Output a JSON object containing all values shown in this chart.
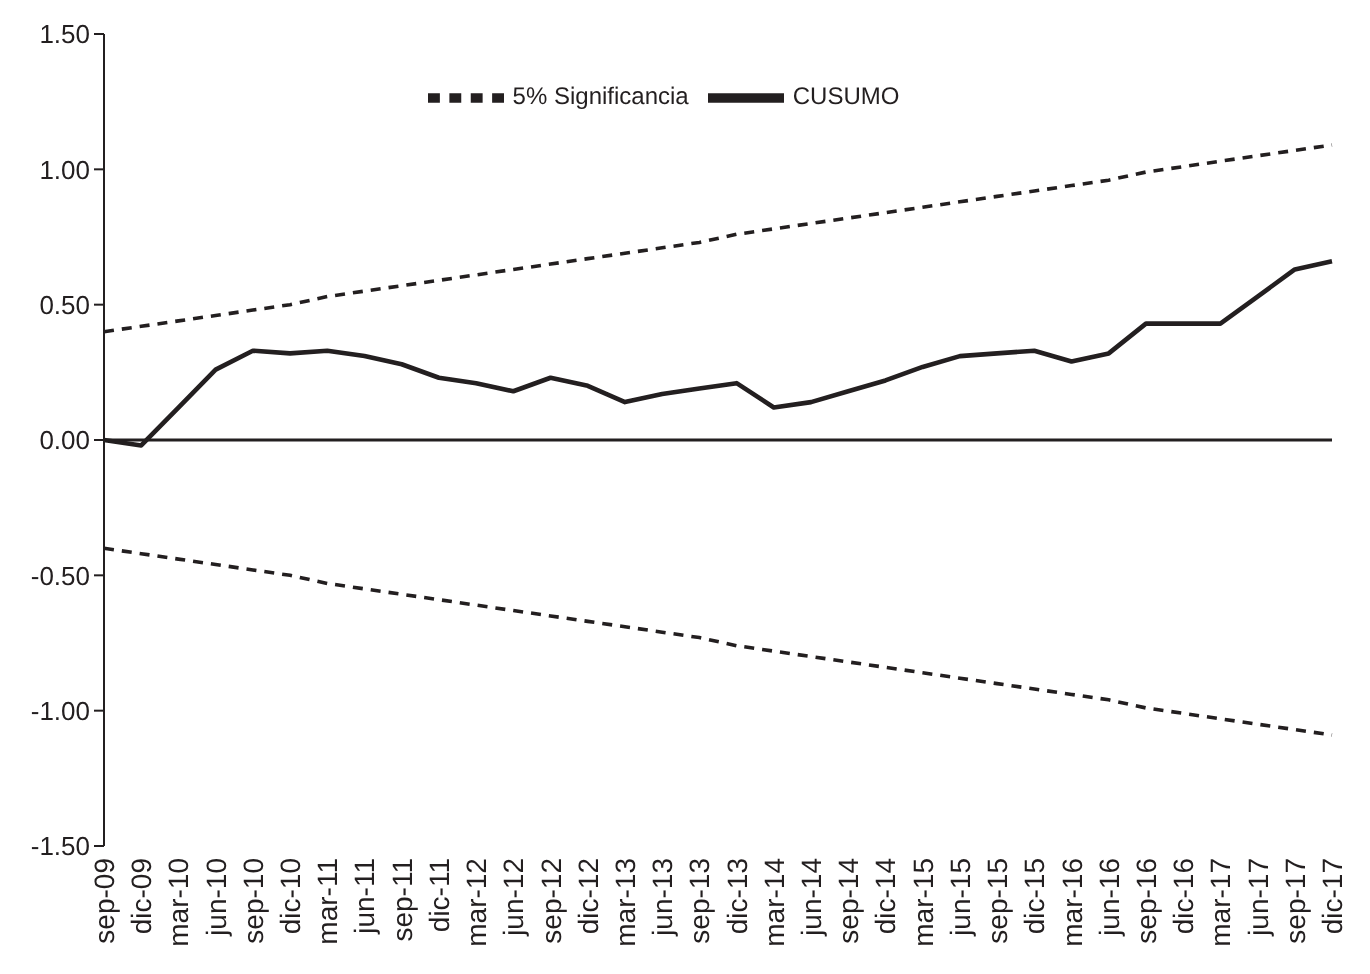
{
  "chart_data": {
    "type": "line",
    "categories": [
      "sep-09",
      "dic-09",
      "mar-10",
      "jun-10",
      "sep-10",
      "dic-10",
      "mar-11",
      "jun-11",
      "sep-11",
      "dic-11",
      "mar-12",
      "jun-12",
      "sep-12",
      "dic-12",
      "mar-13",
      "jun-13",
      "sep-13",
      "dic-13",
      "mar-14",
      "jun-14",
      "sep-14",
      "dic-14",
      "mar-15",
      "jun-15",
      "sep-15",
      "dic-15",
      "mar-16",
      "jun-16",
      "sep-16",
      "dic-16",
      "mar-17",
      "jun-17",
      "sep-17",
      "dic-17"
    ],
    "series": [
      {
        "name": "5% Significancia",
        "color": "#231f20",
        "line_style": "dashed",
        "values": [
          0.4,
          0.42,
          0.44,
          0.46,
          0.48,
          0.5,
          0.53,
          0.55,
          0.57,
          0.59,
          0.61,
          0.63,
          0.65,
          0.67,
          0.69,
          0.71,
          0.73,
          0.76,
          0.78,
          0.8,
          0.82,
          0.84,
          0.86,
          0.88,
          0.9,
          0.92,
          0.94,
          0.96,
          0.99,
          1.01,
          1.03,
          1.05,
          1.07,
          1.09
        ]
      },
      {
        "name": "CUSUMO",
        "color": "#231f20",
        "line_style": "solid",
        "values": [
          0.0,
          -0.02,
          0.12,
          0.26,
          0.33,
          0.32,
          0.33,
          0.31,
          0.28,
          0.23,
          0.21,
          0.18,
          0.23,
          0.2,
          0.14,
          0.17,
          0.19,
          0.21,
          0.12,
          0.14,
          0.18,
          0.22,
          0.27,
          0.31,
          0.32,
          0.33,
          0.29,
          0.32,
          0.43,
          0.43,
          0.43,
          0.53,
          0.63,
          0.66
        ]
      },
      {
        "color": "#231f20",
        "line_style": "dashed",
        "values": [
          -0.4,
          -0.42,
          -0.44,
          -0.46,
          -0.48,
          -0.5,
          -0.53,
          -0.55,
          -0.57,
          -0.59,
          -0.61,
          -0.63,
          -0.65,
          -0.67,
          -0.69,
          -0.71,
          -0.73,
          -0.76,
          -0.78,
          -0.8,
          -0.82,
          -0.84,
          -0.86,
          -0.88,
          -0.9,
          -0.92,
          -0.94,
          -0.96,
          -0.99,
          -1.01,
          -1.03,
          -1.05,
          -1.07,
          -1.09
        ]
      }
    ],
    "ylim": [
      -1.5,
      1.5
    ],
    "yticks": [
      {
        "value": -1.5,
        "label": "-1.50"
      },
      {
        "value": -1,
        "label": "-1.00"
      },
      {
        "value": -0.5,
        "label": "-0.50"
      },
      {
        "value": 0,
        "label": "0.00"
      },
      {
        "value": 0.5,
        "label": "0.50"
      },
      {
        "value": 1,
        "label": "1.00"
      },
      {
        "value": 1.5,
        "label": "1.50"
      }
    ],
    "ref_lines": [
      {
        "axis": "y",
        "value": 0,
        "color": "#231f20",
        "line_style": "solid"
      }
    ],
    "grid": false,
    "legend": "top",
    "marker": "none"
  }
}
